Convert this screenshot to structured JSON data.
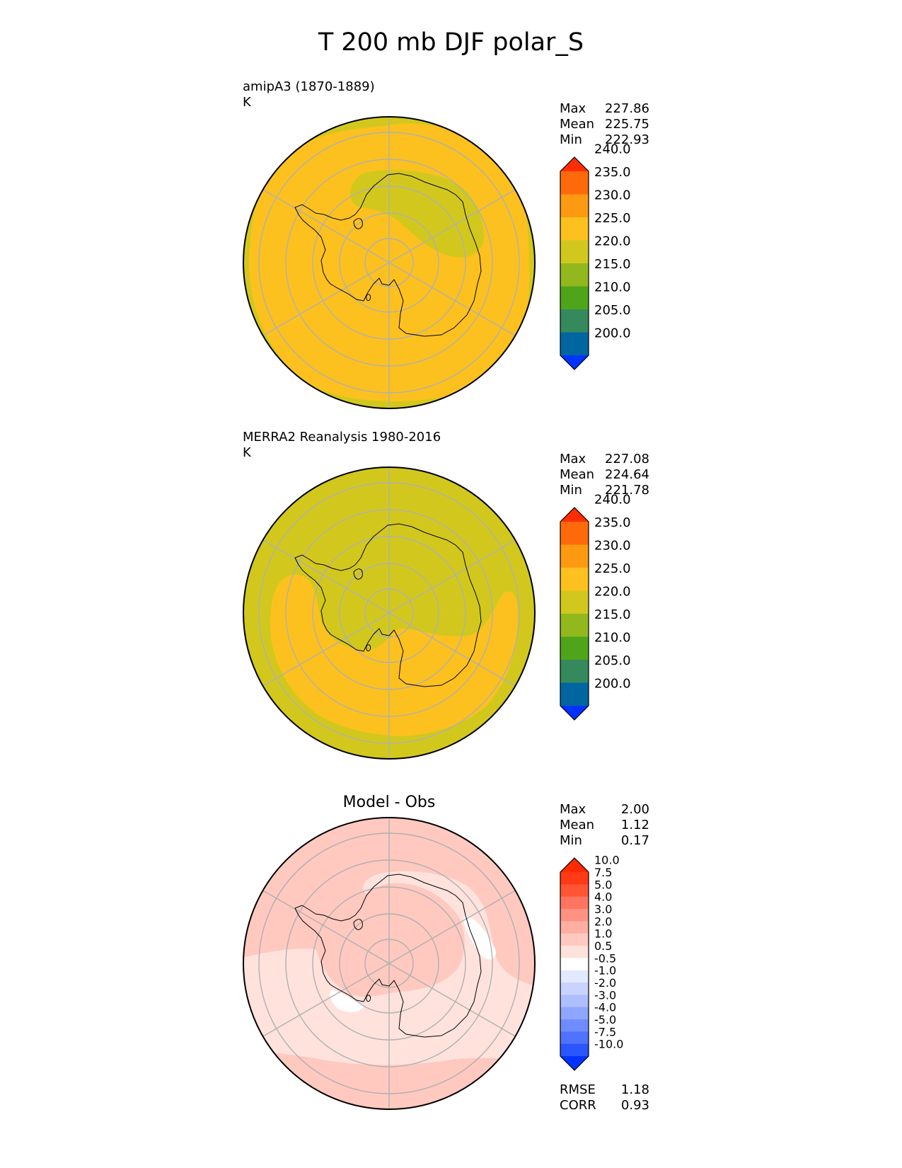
{
  "figure": {
    "title": "T 200 mb DJF polar_S"
  },
  "chart_data": [
    {
      "type": "heatmap",
      "projection": "south-polar-stereographic",
      "title": "amipA3 (1870-1889)",
      "units": "K",
      "stats": [
        {
          "label": "Max",
          "value": "227.86"
        },
        {
          "label": "Mean",
          "value": "225.75"
        },
        {
          "label": "Min",
          "value": "222.93"
        }
      ],
      "colorbar": {
        "levels": [
          200,
          205,
          210,
          215,
          220,
          225,
          230,
          235,
          240
        ],
        "tick_labels": [
          "200.0",
          "205.0",
          "210.0",
          "215.0",
          "220.0",
          "225.0",
          "230.0",
          "235.0",
          "240.0"
        ],
        "colors": [
          "#0033ff",
          "#0066a0",
          "#348a5c",
          "#4fa51a",
          "#92b81e",
          "#d2c81d",
          "#fcc11f",
          "#fe9a12",
          "#fe6a0a",
          "#fe2e02"
        ],
        "extend": "both"
      },
      "field": {
        "background": "#fcc11f",
        "regions": "#d2c81d"
      }
    },
    {
      "type": "heatmap",
      "projection": "south-polar-stereographic",
      "title": "MERRA2 Reanalysis 1980-2016",
      "units": "K",
      "stats": [
        {
          "label": "Max",
          "value": "227.08"
        },
        {
          "label": "Mean",
          "value": "224.64"
        },
        {
          "label": "Min",
          "value": "221.78"
        }
      ],
      "colorbar": {
        "levels": [
          200,
          205,
          210,
          215,
          220,
          225,
          230,
          235,
          240
        ],
        "tick_labels": [
          "200.0",
          "205.0",
          "210.0",
          "215.0",
          "220.0",
          "225.0",
          "230.0",
          "235.0",
          "240.0"
        ],
        "colors": [
          "#0033ff",
          "#0066a0",
          "#348a5c",
          "#4fa51a",
          "#92b81e",
          "#d2c81d",
          "#fcc11f",
          "#fe9a12",
          "#fe6a0a",
          "#fe2e02"
        ],
        "extend": "both"
      },
      "field": {
        "background": "#d2c81d",
        "regions": "#fcc11f"
      }
    },
    {
      "type": "heatmap",
      "projection": "south-polar-stereographic",
      "title": "Model - Obs",
      "units": "",
      "stats": [
        {
          "label": "Max",
          "value": "2.00"
        },
        {
          "label": "Mean",
          "value": "1.12"
        },
        {
          "label": "Min",
          "value": "0.17"
        }
      ],
      "metrics": [
        {
          "label": "RMSE",
          "value": "1.18"
        },
        {
          "label": "CORR",
          "value": "0.93"
        }
      ],
      "colorbar": {
        "levels": [
          -10,
          -7.5,
          -5,
          -4,
          -3,
          -2,
          -1,
          -0.5,
          0.5,
          1,
          2,
          3,
          4,
          5,
          7.5,
          10
        ],
        "tick_labels": [
          "-10.0",
          "-7.5",
          "-5.0",
          "-4.0",
          "-3.0",
          "-2.0",
          "-1.0",
          "-0.5",
          "0.5",
          "1.0",
          "2.0",
          "3.0",
          "4.0",
          "5.0",
          "7.5",
          "10.0"
        ],
        "colors": [
          "#0033ff",
          "#2a55ff",
          "#4f72ff",
          "#6f8cff",
          "#8ea6ff",
          "#adbfff",
          "#c8d3ff",
          "#e3e9ff",
          "#ffffff",
          "#ffe2dc",
          "#ffc9c0",
          "#ffaea2",
          "#ff9282",
          "#ff7560",
          "#ff5533",
          "#ff3a16",
          "#ff2a00"
        ],
        "extend": "both"
      },
      "field": {
        "background": "#ffc9c0",
        "regions": "#ffe2dc",
        "highlight": "#ffffff"
      }
    }
  ]
}
